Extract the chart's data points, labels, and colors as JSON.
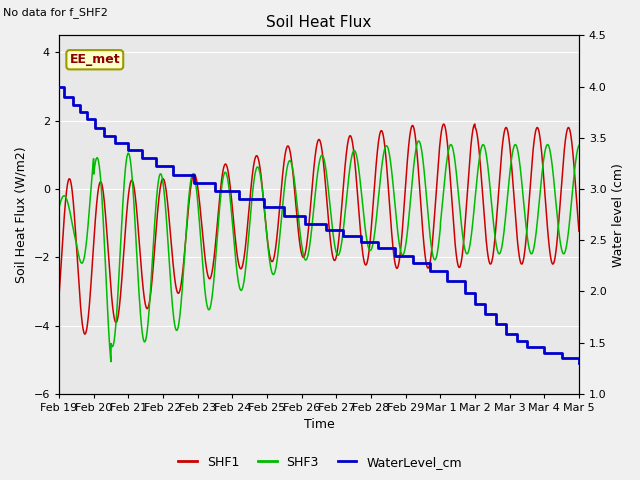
{
  "title": "Soil Heat Flux",
  "top_left_text": "No data for f_SHF2",
  "annotation_box": "EE_met",
  "ylabel_left": "Soil Heat Flux (W/m2)",
  "ylabel_right": "Water level (cm)",
  "xlabel": "Time",
  "ylim_left": [
    -6.0,
    4.5
  ],
  "ylim_right": [
    1.0,
    4.5
  ],
  "fig_bg_color": "#f0f0f0",
  "plot_bg_color": "#e8e8e8",
  "x_ticks": [
    "Feb 19",
    "Feb 20",
    "Feb 21",
    "Feb 22",
    "Feb 23",
    "Feb 24",
    "Feb 25",
    "Feb 26",
    "Feb 27",
    "Feb 28",
    "Feb 29",
    "Mar 1",
    "Mar 2",
    "Mar 3",
    "Mar 4",
    "Mar 5"
  ],
  "shf1_color": "#cc0000",
  "shf3_color": "#00bb00",
  "water_color": "#0000cc",
  "grid_color": "#ffffff",
  "legend_labels": [
    "SHF1",
    "SHF3",
    "WaterLevel_cm"
  ],
  "shf1_period": 0.9,
  "shf3_period": 0.95,
  "water_t": [
    0,
    0.15,
    0.4,
    0.6,
    0.8,
    1.05,
    1.3,
    1.6,
    2.0,
    2.4,
    2.8,
    3.3,
    3.9,
    4.5,
    5.2,
    5.9,
    6.5,
    7.1,
    7.7,
    8.2,
    8.7,
    9.2,
    9.7,
    10.2,
    10.7,
    11.2,
    11.7,
    12.0,
    12.3,
    12.6,
    12.9,
    13.2,
    13.5,
    14.0,
    14.5,
    15.0
  ],
  "water_v": [
    4.0,
    3.9,
    3.82,
    3.75,
    3.68,
    3.6,
    3.52,
    3.45,
    3.38,
    3.3,
    3.22,
    3.14,
    3.06,
    2.98,
    2.9,
    2.82,
    2.74,
    2.66,
    2.6,
    2.54,
    2.48,
    2.42,
    2.35,
    2.28,
    2.2,
    2.1,
    1.98,
    1.88,
    1.78,
    1.68,
    1.58,
    1.52,
    1.46,
    1.4,
    1.35,
    1.3
  ]
}
